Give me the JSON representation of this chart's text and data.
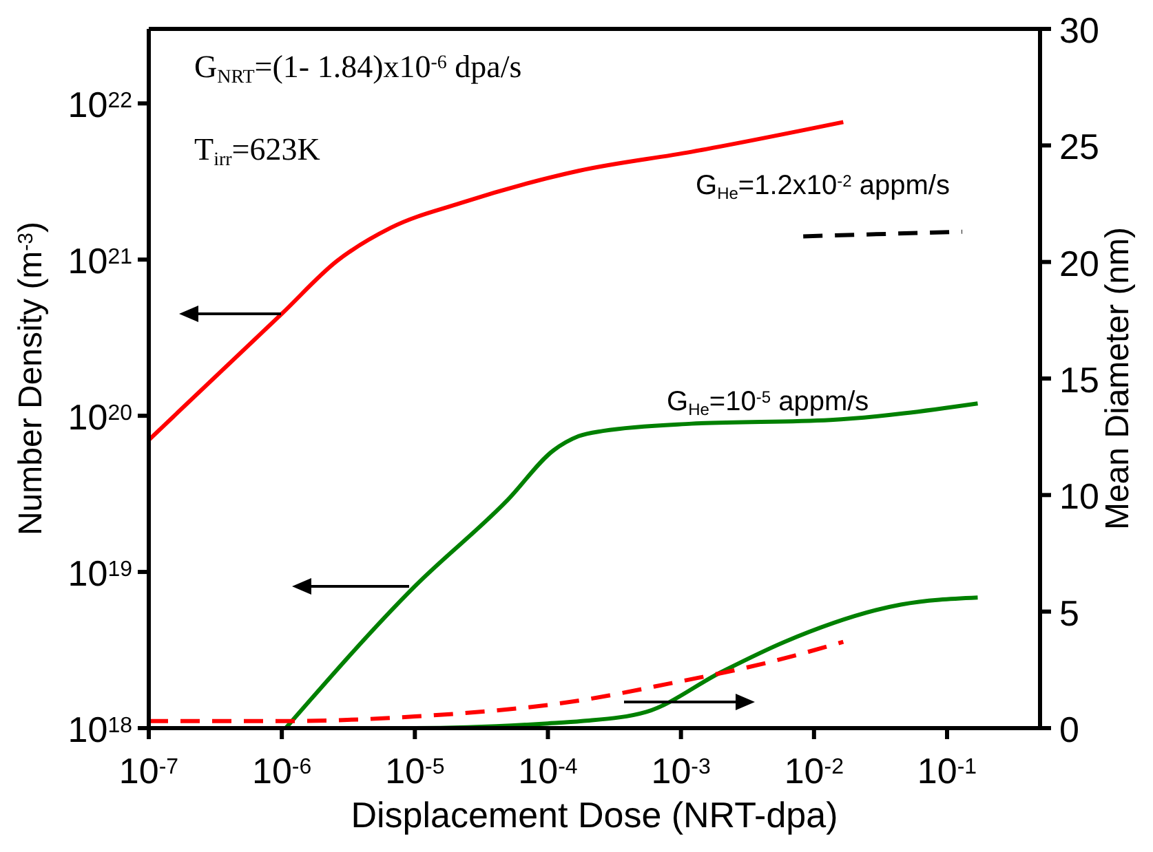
{
  "chart_data": {
    "type": "line",
    "xlabel": "Displacement Dose (NRT-dpa)",
    "ylabel": "Number Density (m$^{-3}$)",
    "y2label": "Mean Diameter (nm)",
    "annotations": [
      "G$_{NRT}$=(1- 1.84)x10$^{-6}$ dpa/s",
      "T$_{irr}$=623K",
      "G$_{He}$=1.2x10$^{-2}$ appm/s",
      "G$_{He}$=10$^{-5}$ appm/s"
    ],
    "log": "xy",
    "xlim": [
      1e-07,
      0.5
    ],
    "xticks": [
      {
        "value": 1e-07,
        "label": "10$^{-7}$"
      },
      {
        "value": 1e-06,
        "label": "10$^{-6}$"
      },
      {
        "value": 1e-05,
        "label": "10$^{-5}$"
      },
      {
        "value": 0.0001,
        "label": "10$^{-4}$"
      },
      {
        "value": 0.001,
        "label": "10$^{-3}$"
      },
      {
        "value": 0.01,
        "label": "10$^{-2}$"
      },
      {
        "value": 0.1,
        "label": "10$^{-1}$"
      }
    ],
    "ylim": [
      1e+18,
      3e+22
    ],
    "yticks": [
      {
        "value": 1e+18,
        "label": "10$^{18}$"
      },
      {
        "value": 1e+19,
        "label": "10$^{19}$"
      },
      {
        "value": 1e+20,
        "label": "10$^{20}$"
      },
      {
        "value": 1e+21,
        "label": "10$^{21}$"
      },
      {
        "value": 1e+22,
        "label": "10$^{22}$"
      }
    ],
    "y2lim": [
      0,
      30
    ],
    "y2ticks": [
      0,
      5,
      10,
      15,
      20,
      25,
      30
    ],
    "series": [
      {
        "color": "#ff0000",
        "line_style": "solid",
        "x": [
          1e-07,
          1e-06,
          2.6e-06,
          6.6e-06,
          2.2e-05,
          0.00017,
          0.0012,
          0.0166
        ],
        "values": [
          7e+19,
          4.5e+20,
          9.8e+20,
          1.6e+21,
          2.3e+21,
          3.7e+21,
          4.9e+21,
          7.6e+21
        ]
      },
      {
        "color": "#008000",
        "line_style": "solid",
        "x": [
          1.07e-06,
          1e-05,
          5e-05,
          0.00011,
          0.00017,
          0.00026,
          0.0012,
          0.0133,
          0.17
        ],
        "values": [
          1e+18,
          8.1e+18,
          2.9e+19,
          6e+19,
          7.4e+19,
          8e+19,
          8.9e+19,
          9.4e+19,
          1.2e+20
        ]
      },
      {
        "color": "#008000",
        "line_style": "solid",
        "axis": "y2",
        "x": [
          1e-07,
          1e-05,
          0.0001,
          0.00018,
          0.00055,
          0.002,
          0.006,
          0.045,
          0.17
        ],
        "values": [
          0,
          0,
          0.2,
          0.3,
          0.7,
          2.4,
          3.7,
          5.3,
          5.6
        ]
      },
      {
        "color": "#ff0000",
        "line_style": "dashed",
        "axis": "y2",
        "x": [
          1e-07,
          1e-06,
          1e-05,
          0.00018,
          0.0008,
          0.0044,
          0.0166
        ],
        "values": [
          0.3,
          0.3,
          0.5,
          1.2,
          1.9,
          2.8,
          3.7
        ]
      },
      {
        "color": "#000000",
        "line_style": "dashed",
        "axis": "y2",
        "x": [
          0.0083,
          0.13
        ],
        "values": [
          21.1,
          21.3
        ]
      }
    ]
  }
}
